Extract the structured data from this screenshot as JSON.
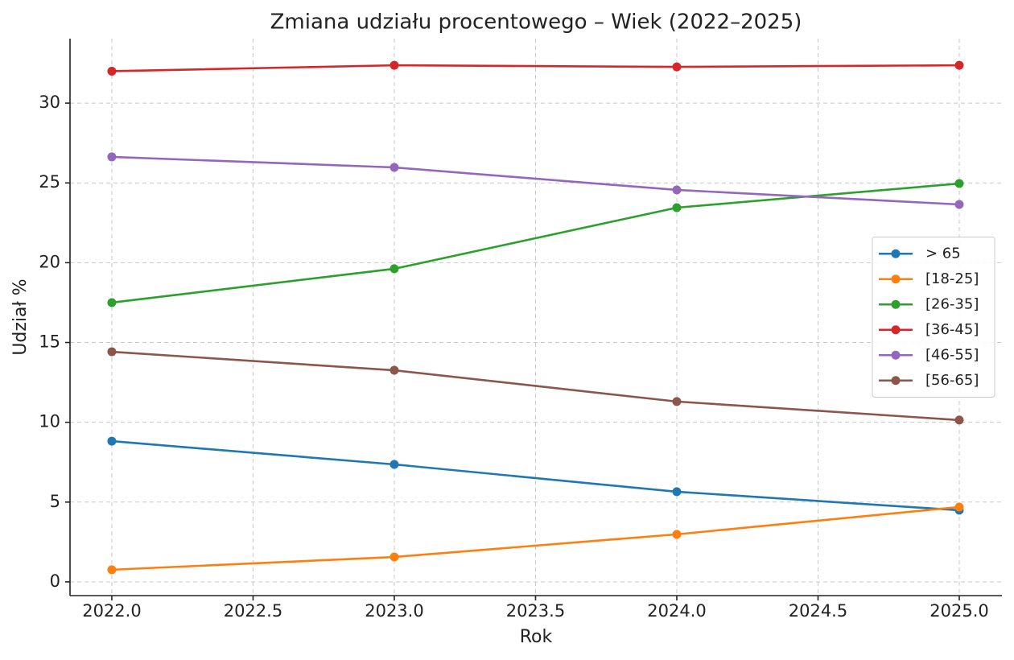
{
  "chart_data": {
    "type": "line",
    "title": "Zmiana udziału procentowego – Wiek (2022–2025)",
    "x_label": "Rok",
    "y_label": "Udział %",
    "x": [
      2022,
      2023,
      2024,
      2025
    ],
    "series": [
      {
        "name": "> 65",
        "color": "#1f77b4",
        "values": [
          8.82,
          7.36,
          5.65,
          4.49
        ]
      },
      {
        "name": "[18-25]",
        "color": "#ff7f0e",
        "values": [
          0.76,
          1.56,
          2.98,
          4.69
        ]
      },
      {
        "name": "[26-35]",
        "color": "#2ca02c",
        "values": [
          17.5,
          19.62,
          23.45,
          24.96
        ]
      },
      {
        "name": "[36-45]",
        "color": "#d62728",
        "values": [
          32.0,
          32.37,
          32.27,
          32.37
        ]
      },
      {
        "name": "[46-55]",
        "color": "#9467bd",
        "values": [
          26.63,
          25.97,
          24.56,
          23.65
        ]
      },
      {
        "name": "[56-65]",
        "color": "#8c564b",
        "values": [
          14.42,
          13.26,
          11.3,
          10.14
        ]
      }
    ],
    "xlim": [
      2021.852,
      2025.151
    ],
    "ylim": [
      -0.86,
      34.04
    ],
    "xticks": [
      {
        "value": 2022,
        "label": "2022.0"
      },
      {
        "value": 2022.5,
        "label": "2022.5"
      },
      {
        "value": 2023,
        "label": "2023.0"
      },
      {
        "value": 2023.5,
        "label": "2023.5"
      },
      {
        "value": 2024,
        "label": "2024.0"
      },
      {
        "value": 2024.5,
        "label": "2024.5"
      },
      {
        "value": 2025,
        "label": "2025.0"
      }
    ],
    "yticks": [
      0,
      5,
      10,
      15,
      20,
      25,
      30
    ],
    "grid": true,
    "legend": "center right"
  }
}
